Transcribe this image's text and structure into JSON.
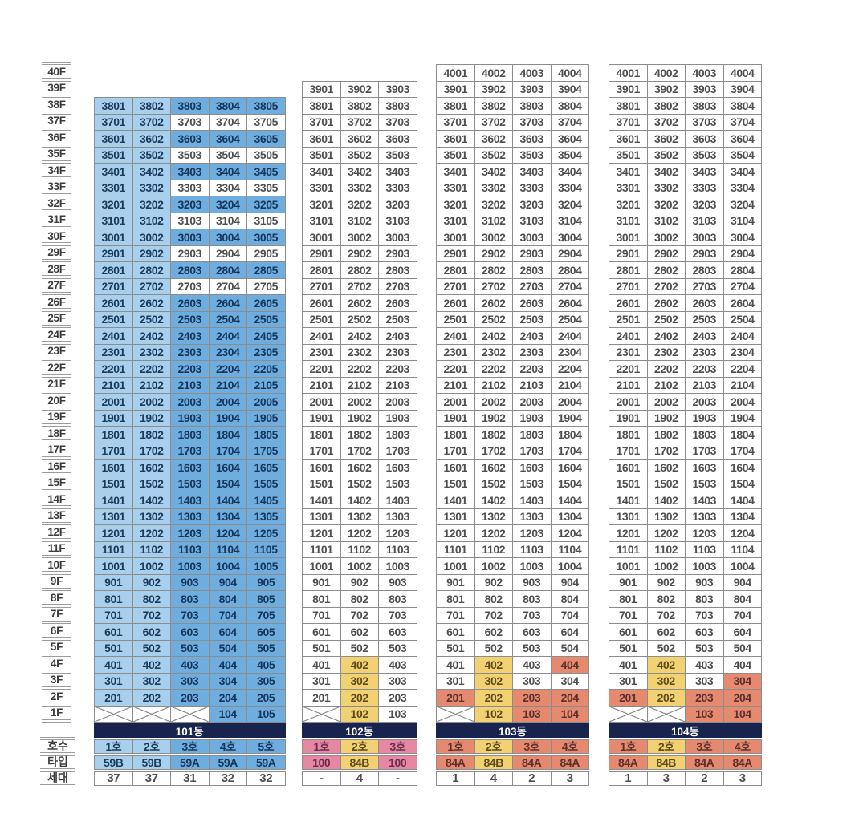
{
  "colors": {
    "cell_bg": {
      "lb": "#a8d0ec",
      "db": "#6fadde",
      "w": "#ffffff",
      "y": "#f2d172",
      "s": "#e58a6e",
      "p": "#e687a3"
    },
    "cell_text": {
      "lb": "#1d3a5f",
      "db": "#16365c",
      "w": "#4f4f4f",
      "y": "#5f4a1c",
      "s": "#5d3030",
      "p": "#6d2b4d"
    },
    "navy_band": "#18234e",
    "grid_line": "#8c8c8c",
    "ladder_line": "#9c9c9c",
    "floor_label_text": "#3c3c3c"
  },
  "color_code_legend": {
    "lb": "light blue",
    "db": "medium blue",
    "w": "white",
    "y": "yellow",
    "s": "salmon",
    "p": "pink",
    "x": "crossed-out cell (no unit)"
  },
  "unit_numbering_rule": "unit number = floor*100 + column index, e.g. floor 38 column 1 -> 3801; cells coded x are crossed out with no number",
  "floor_axis": {
    "labels": [
      "40F",
      "39F",
      "38F",
      "37F",
      "36F",
      "35F",
      "34F",
      "33F",
      "32F",
      "31F",
      "30F",
      "29F",
      "28F",
      "27F",
      "26F",
      "25F",
      "24F",
      "23F",
      "22F",
      "21F",
      "20F",
      "19F",
      "18F",
      "17F",
      "16F",
      "15F",
      "14F",
      "13F",
      "12F",
      "11F",
      "10F",
      "9F",
      "8F",
      "7F",
      "6F",
      "5F",
      "4F",
      "3F",
      "2F",
      "1F"
    ]
  },
  "row_labels": {
    "hosu": "호수",
    "type": "타입",
    "sedae": "세대"
  },
  "buildings": [
    {
      "name": "101동",
      "top_floor": 38,
      "columns": 5,
      "default_column_colors": [
        "lb",
        "lb",
        "db",
        "db",
        "db"
      ],
      "floor_overrides": {
        "37": [
          null,
          null,
          "w",
          "w",
          "w"
        ],
        "35": [
          null,
          null,
          "w",
          "w",
          "w"
        ],
        "33": [
          null,
          null,
          "w",
          "w",
          "w"
        ],
        "31": [
          null,
          null,
          "w",
          "w",
          "w"
        ],
        "29": [
          null,
          null,
          "w",
          "w",
          "w"
        ],
        "27": [
          null,
          null,
          "w",
          "w",
          "w"
        ],
        "1": [
          "x",
          "x",
          "x",
          "db",
          "db"
        ]
      },
      "hosu": [
        [
          "1호",
          "lb"
        ],
        [
          "2호",
          "lb"
        ],
        [
          "3호",
          "db"
        ],
        [
          "4호",
          "db"
        ],
        [
          "5호",
          "db"
        ]
      ],
      "types": [
        [
          "59B",
          "lb"
        ],
        [
          "59B",
          "lb"
        ],
        [
          "59A",
          "db"
        ],
        [
          "59A",
          "db"
        ],
        [
          "59A",
          "db"
        ]
      ],
      "sedae": [
        "37",
        "37",
        "31",
        "32",
        "32"
      ]
    },
    {
      "name": "102동",
      "top_floor": 39,
      "columns": 3,
      "default_column_colors": [
        "w",
        "w",
        "w"
      ],
      "floor_overrides": {
        "4": [
          null,
          "y",
          null
        ],
        "3": [
          null,
          "y",
          null
        ],
        "2": [
          null,
          "y",
          null
        ],
        "1": [
          "x",
          "y",
          "w"
        ]
      },
      "hosu": [
        [
          "1호",
          "p"
        ],
        [
          "2호",
          "y"
        ],
        [
          "3호",
          "p"
        ]
      ],
      "types": [
        [
          "100",
          "p"
        ],
        [
          "84B",
          "y"
        ],
        [
          "100",
          "p"
        ]
      ],
      "sedae": [
        "-",
        "4",
        "-"
      ]
    },
    {
      "name": "103동",
      "top_floor": 40,
      "columns": 4,
      "default_column_colors": [
        "w",
        "w",
        "w",
        "w"
      ],
      "floor_overrides": {
        "4": [
          null,
          "y",
          null,
          "s"
        ],
        "3": [
          null,
          "y",
          null,
          null
        ],
        "2": [
          "s",
          "y",
          "s",
          "s"
        ],
        "1": [
          "x",
          "y",
          "s",
          "s"
        ]
      },
      "hosu": [
        [
          "1호",
          "s"
        ],
        [
          "2호",
          "y"
        ],
        [
          "3호",
          "s"
        ],
        [
          "4호",
          "s"
        ]
      ],
      "types": [
        [
          "84A",
          "s"
        ],
        [
          "84B",
          "y"
        ],
        [
          "84A",
          "s"
        ],
        [
          "84A",
          "s"
        ]
      ],
      "sedae": [
        "1",
        "4",
        "2",
        "3"
      ]
    },
    {
      "name": "104동",
      "top_floor": 40,
      "columns": 4,
      "default_column_colors": [
        "w",
        "w",
        "w",
        "w"
      ],
      "floor_overrides": {
        "4": [
          null,
          "y",
          null,
          null
        ],
        "3": [
          null,
          "y",
          null,
          "s"
        ],
        "2": [
          "s",
          "y",
          "s",
          "s"
        ],
        "1": [
          "x",
          "x",
          "s",
          "s"
        ]
      },
      "hosu": [
        [
          "1호",
          "s"
        ],
        [
          "2호",
          "y"
        ],
        [
          "3호",
          "s"
        ],
        [
          "4호",
          "s"
        ]
      ],
      "types": [
        [
          "84A",
          "s"
        ],
        [
          "84B",
          "y"
        ],
        [
          "84A",
          "s"
        ],
        [
          "84A",
          "s"
        ]
      ],
      "sedae": [
        "1",
        "3",
        "2",
        "3"
      ]
    }
  ]
}
